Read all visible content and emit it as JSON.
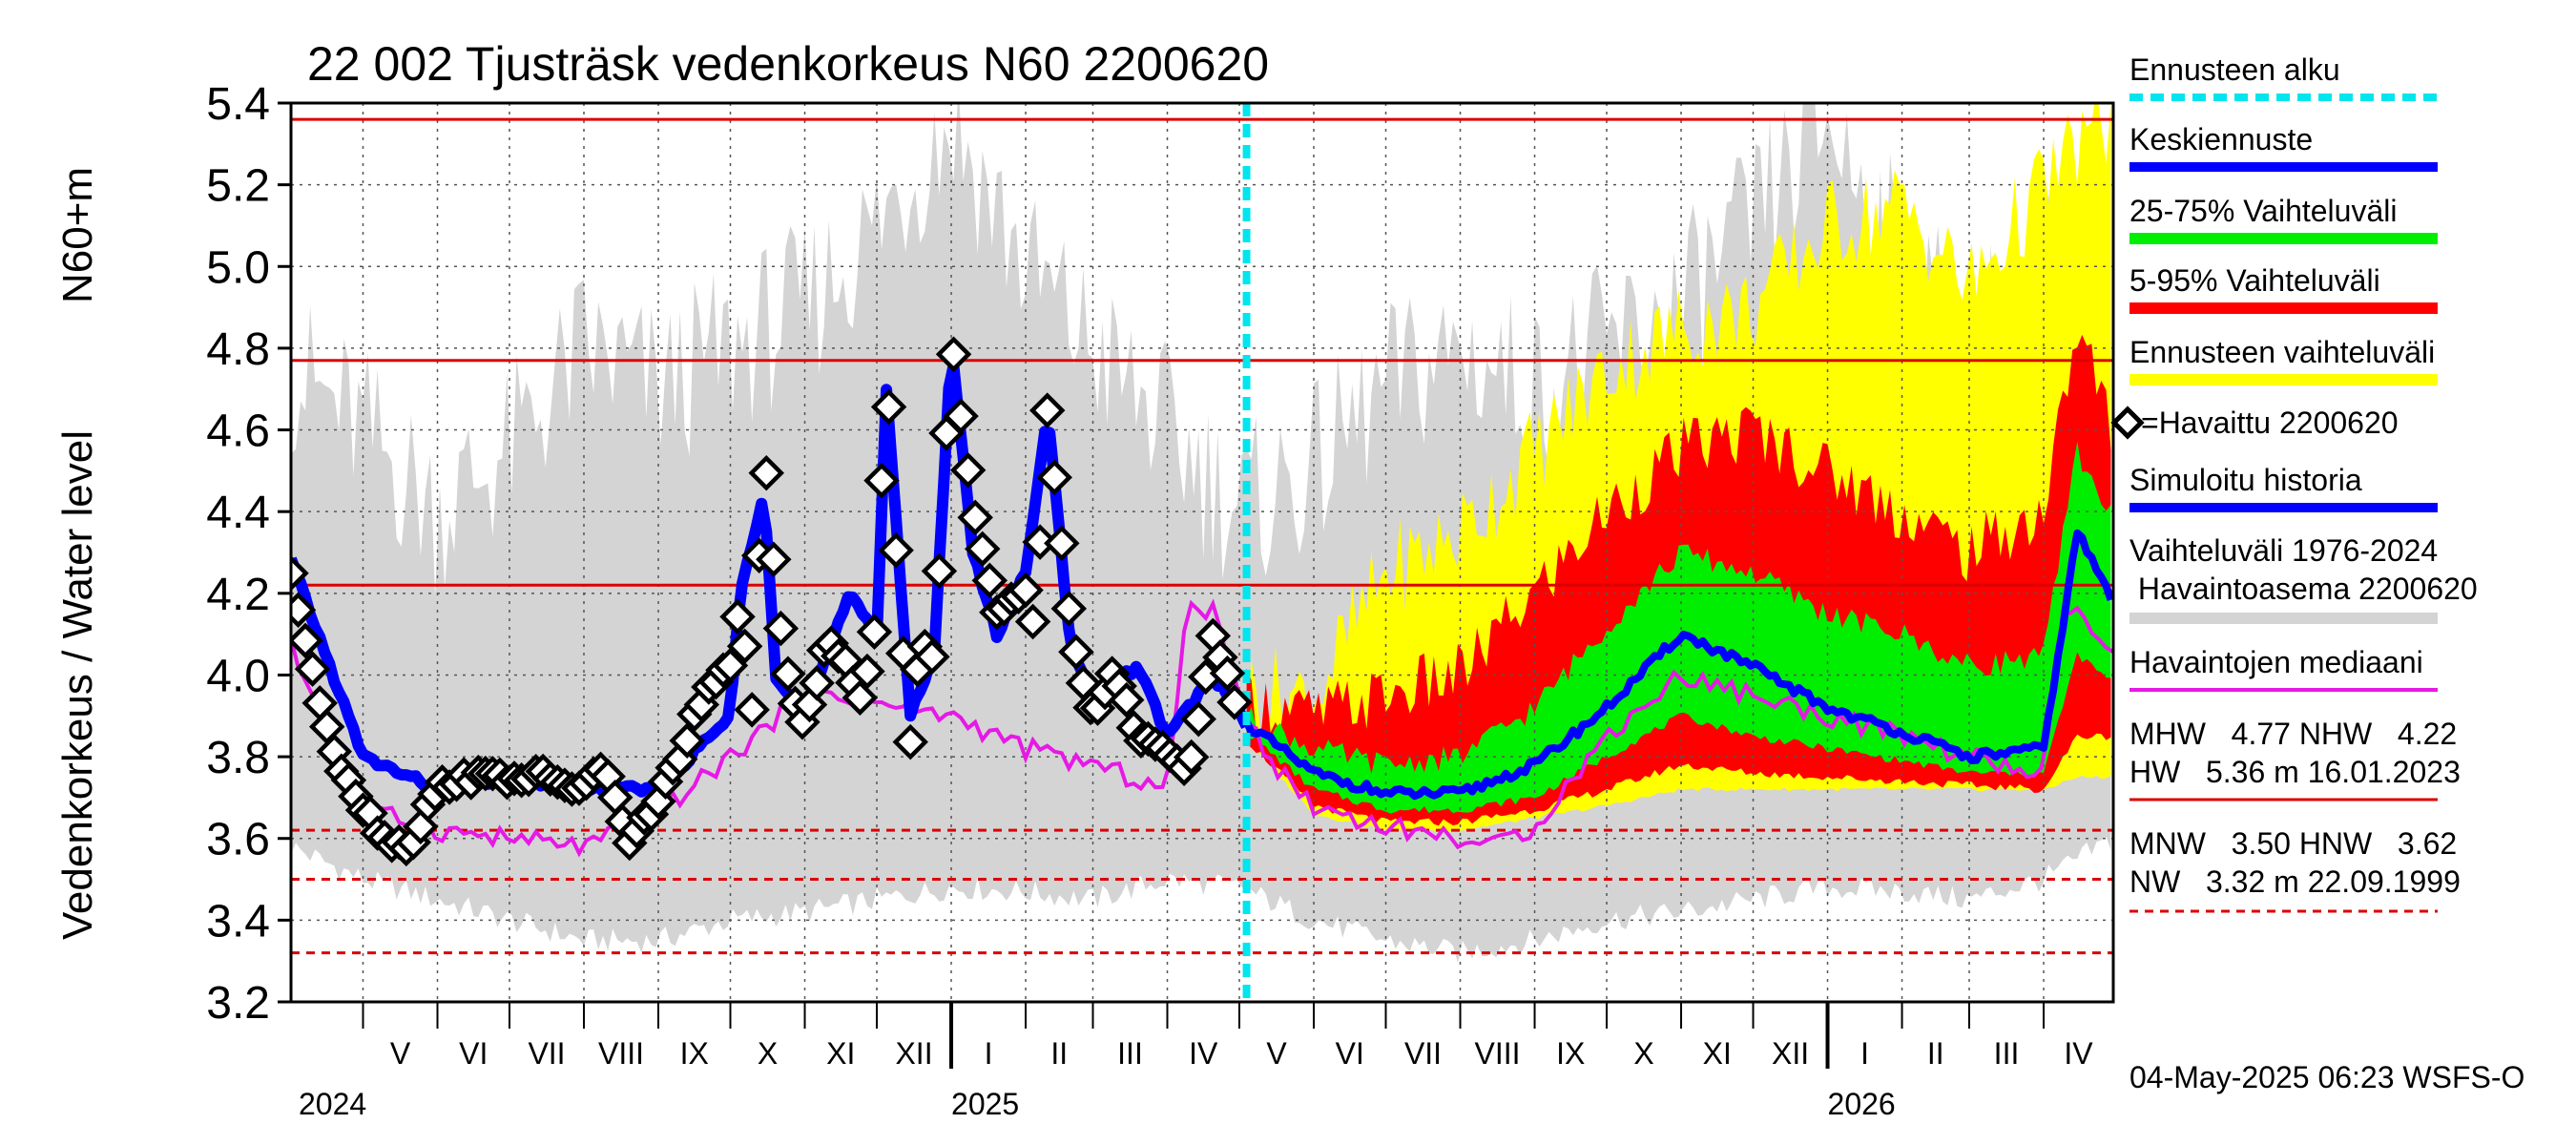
{
  "chart_data": {
    "type": "area",
    "title": "22 002 Tjusträsk vedenkorkeus N60 2200620",
    "ylabel_left": "Vedenkorkeus / Water level",
    "ylabel_right": "N60+m",
    "ylim": [
      3.2,
      5.4
    ],
    "yticks": [
      "3.2",
      "3.4",
      "3.6",
      "3.8",
      "4.0",
      "4.2",
      "4.4",
      "4.6",
      "4.8",
      "5.0",
      "5.2",
      "5.4"
    ],
    "x_start": "2024-04-01",
    "x_end": "2026-04-30",
    "forecast_start": "2025-05-04",
    "months": [
      {
        "label": "V",
        "start": "2024-05-01"
      },
      {
        "label": "VI",
        "start": "2024-06-01"
      },
      {
        "label": "VII",
        "start": "2024-07-01"
      },
      {
        "label": "VIII",
        "start": "2024-08-01"
      },
      {
        "label": "IX",
        "start": "2024-09-01"
      },
      {
        "label": "X",
        "start": "2024-10-01"
      },
      {
        "label": "XI",
        "start": "2024-11-01"
      },
      {
        "label": "XII",
        "start": "2024-12-01"
      },
      {
        "label": "I",
        "start": "2025-01-01"
      },
      {
        "label": "II",
        "start": "2025-02-01"
      },
      {
        "label": "III",
        "start": "2025-03-01"
      },
      {
        "label": "IV",
        "start": "2025-04-01"
      },
      {
        "label": "V",
        "start": "2025-05-01"
      },
      {
        "label": "VI",
        "start": "2025-06-01"
      },
      {
        "label": "VII",
        "start": "2025-07-01"
      },
      {
        "label": "VIII",
        "start": "2025-08-01"
      },
      {
        "label": "IX",
        "start": "2025-09-01"
      },
      {
        "label": "X",
        "start": "2025-10-01"
      },
      {
        "label": "XI",
        "start": "2025-11-01"
      },
      {
        "label": "XII",
        "start": "2025-12-01"
      },
      {
        "label": "I",
        "start": "2026-01-01"
      },
      {
        "label": "II",
        "start": "2026-02-01"
      },
      {
        "label": "III",
        "start": "2026-03-01"
      },
      {
        "label": "IV",
        "start": "2026-04-01"
      }
    ],
    "years": [
      {
        "label": "2024",
        "at": "2024-04-01"
      },
      {
        "label": "2025",
        "at": "2025-01-01"
      },
      {
        "label": "2026",
        "at": "2026-01-01"
      }
    ],
    "reference_lines": [
      {
        "name": "HW",
        "value": 5.36,
        "style": "solid"
      },
      {
        "name": "MHW",
        "value": 4.77,
        "style": "solid"
      },
      {
        "name": "NHW",
        "value": 4.22,
        "style": "solid"
      },
      {
        "name": "HNW",
        "value": 3.62,
        "style": "dashed"
      },
      {
        "name": "MNW",
        "value": 3.5,
        "style": "dashed"
      },
      {
        "name": "NW",
        "value": 3.32,
        "style": "dashed"
      }
    ],
    "colors": {
      "gray": "#d4d4d4",
      "yellow": "#ffff00",
      "red": "#ff0000",
      "green": "#00ee00",
      "blue": "#0000ff",
      "magenta": "#e619e6",
      "cyan": "#00e5ee",
      "refline": "#dd0000",
      "black": "#000000"
    },
    "historical_range": {
      "name": "Vaihteluväli 1976-2024 Havaintoasema 2200620",
      "dates": [
        "2024-04-01",
        "2024-05-01",
        "2024-06-01",
        "2024-07-01",
        "2024-08-01",
        "2024-09-01",
        "2024-10-01",
        "2024-11-01",
        "2024-12-01",
        "2025-01-01",
        "2025-02-01",
        "2025-03-01",
        "2025-04-01",
        "2025-05-01",
        "2025-06-01",
        "2025-07-01",
        "2025-08-01",
        "2025-09-01",
        "2025-10-01",
        "2025-11-01",
        "2025-12-01",
        "2026-01-01",
        "2026-02-01",
        "2026-03-01",
        "2026-04-01",
        "2026-04-30"
      ],
      "low": [
        3.58,
        3.5,
        3.45,
        3.4,
        3.35,
        3.35,
        3.4,
        3.42,
        3.45,
        3.48,
        3.47,
        3.45,
        3.5,
        3.48,
        3.4,
        3.35,
        3.32,
        3.35,
        3.4,
        3.42,
        3.45,
        3.48,
        3.47,
        3.45,
        3.5,
        3.6
      ],
      "high": [
        4.75,
        4.6,
        4.4,
        4.55,
        4.8,
        4.7,
        4.8,
        4.9,
        5.1,
        5.36,
        5.0,
        4.8,
        4.6,
        4.4,
        4.5,
        4.7,
        4.8,
        4.7,
        4.8,
        4.9,
        5.1,
        5.36,
        5.0,
        4.8,
        5.0,
        4.7
      ]
    },
    "observed": {
      "name": "Havaittu 2200620",
      "dates": [
        "2024-04-01",
        "2024-04-10",
        "2024-04-20",
        "2024-05-01",
        "2024-05-10",
        "2024-05-20",
        "2024-06-01",
        "2024-06-10",
        "2024-06-20",
        "2024-07-01",
        "2024-07-15",
        "2024-08-01",
        "2024-08-10",
        "2024-08-20",
        "2024-09-01",
        "2024-09-10",
        "2024-09-20",
        "2024-10-01",
        "2024-10-05",
        "2024-10-10",
        "2024-10-15",
        "2024-10-20",
        "2024-10-25",
        "2024-11-01",
        "2024-11-10",
        "2024-11-20",
        "2024-11-25",
        "2024-12-01",
        "2024-12-05",
        "2024-12-10",
        "2024-12-15",
        "2024-12-20",
        "2024-12-25",
        "2025-01-01",
        "2025-01-10",
        "2025-01-20",
        "2025-02-01",
        "2025-02-05",
        "2025-02-10",
        "2025-02-20",
        "2025-03-01",
        "2025-03-10",
        "2025-03-20",
        "2025-04-01",
        "2025-04-10",
        "2025-04-20",
        "2025-05-01"
      ],
      "values": [
        4.25,
        4.0,
        3.8,
        3.68,
        3.6,
        3.58,
        3.72,
        3.75,
        3.75,
        3.75,
        3.75,
        3.72,
        3.78,
        3.58,
        3.7,
        3.8,
        3.95,
        4.02,
        4.2,
        3.9,
        4.55,
        4.2,
        4.0,
        3.86,
        4.1,
        4.0,
        3.92,
        4.15,
        4.78,
        4.2,
        3.85,
        4.1,
        4.02,
        4.82,
        4.4,
        4.15,
        4.22,
        4.12,
        4.65,
        4.1,
        3.9,
        4.0,
        3.85,
        3.82,
        3.75,
        4.1,
        3.9
      ]
    },
    "simulated": {
      "name": "Simuloitu historia",
      "dates": [
        "2024-04-01",
        "2024-05-01",
        "2024-06-01",
        "2024-07-01",
        "2024-08-01",
        "2024-09-01",
        "2024-10-01",
        "2024-10-05",
        "2024-10-15",
        "2024-10-20",
        "2024-11-01",
        "2024-11-20",
        "2024-12-01",
        "2024-12-05",
        "2024-12-15",
        "2024-12-25",
        "2025-01-01",
        "2025-01-10",
        "2025-01-20",
        "2025-02-01",
        "2025-02-10",
        "2025-02-20",
        "2025-03-01",
        "2025-03-20",
        "2025-04-01",
        "2025-04-20",
        "2025-05-04"
      ],
      "values": [
        4.28,
        3.8,
        3.72,
        3.75,
        3.72,
        3.72,
        3.9,
        4.2,
        4.45,
        4.0,
        3.9,
        4.2,
        4.1,
        4.7,
        3.9,
        4.05,
        4.82,
        4.3,
        4.1,
        4.25,
        4.65,
        4.05,
        3.95,
        4.02,
        3.85,
        4.0,
        3.88
      ]
    },
    "median": {
      "name": "Havaintojen mediaani",
      "dates": [
        "2024-04-01",
        "2024-05-01",
        "2024-06-01",
        "2024-07-01",
        "2024-08-01",
        "2024-09-01",
        "2024-10-01",
        "2024-11-01",
        "2024-12-01",
        "2025-01-01",
        "2025-02-01",
        "2025-03-01",
        "2025-04-01",
        "2025-04-10",
        "2025-04-20",
        "2025-05-01",
        "2025-05-15",
        "2025-06-01",
        "2025-07-01",
        "2025-08-01",
        "2025-08-15",
        "2025-09-01",
        "2025-10-01",
        "2025-11-01",
        "2025-12-01",
        "2026-01-01",
        "2026-02-01",
        "2026-03-01",
        "2026-04-01",
        "2026-04-10",
        "2026-04-30"
      ],
      "values": [
        4.07,
        3.67,
        3.62,
        3.6,
        3.58,
        3.66,
        3.8,
        3.95,
        3.93,
        3.9,
        3.82,
        3.78,
        3.72,
        4.19,
        4.15,
        3.95,
        3.78,
        3.68,
        3.63,
        3.6,
        3.58,
        3.63,
        3.85,
        4.0,
        3.95,
        3.9,
        3.85,
        3.8,
        3.75,
        4.18,
        4.05
      ]
    },
    "forecast": {
      "dates": [
        "2025-05-04",
        "2025-06-01",
        "2025-07-01",
        "2025-08-01",
        "2025-09-01",
        "2025-10-01",
        "2025-11-01",
        "2025-12-01",
        "2026-01-01",
        "2026-02-01",
        "2026-03-01",
        "2026-04-01",
        "2026-04-15",
        "2026-04-30"
      ],
      "mean": [
        3.88,
        3.76,
        3.71,
        3.71,
        3.78,
        3.92,
        4.1,
        4.02,
        3.92,
        3.86,
        3.8,
        3.82,
        4.35,
        4.18
      ],
      "p25": [
        3.86,
        3.72,
        3.67,
        3.67,
        3.7,
        3.8,
        3.9,
        3.85,
        3.82,
        3.79,
        3.76,
        3.76,
        4.05,
        3.98
      ],
      "p75": [
        3.9,
        3.82,
        3.78,
        3.8,
        3.92,
        4.12,
        4.3,
        4.25,
        4.15,
        4.1,
        4.02,
        4.05,
        4.55,
        4.38
      ],
      "p05": [
        3.84,
        3.68,
        3.64,
        3.64,
        3.67,
        3.72,
        3.78,
        3.76,
        3.75,
        3.74,
        3.73,
        3.72,
        3.85,
        3.85
      ],
      "p95": [
        3.94,
        3.9,
        3.95,
        4.0,
        4.2,
        4.4,
        4.55,
        4.6,
        4.5,
        4.4,
        4.3,
        4.4,
        4.85,
        4.6
      ],
      "min": [
        3.84,
        3.66,
        3.62,
        3.62,
        3.65,
        3.68,
        3.72,
        3.72,
        3.72,
        3.72,
        3.72,
        3.72,
        3.75,
        3.75
      ],
      "max": [
        3.96,
        3.95,
        4.25,
        4.35,
        4.55,
        4.75,
        4.85,
        4.9,
        5.1,
        5.15,
        4.95,
        5.2,
        5.3,
        5.35
      ]
    },
    "legend": {
      "forecast_start": "Ennusteen alku",
      "mean": "Keskiennuste",
      "p25_75": "25-75% Vaihteluväli",
      "p05_95": "5-95% Vaihteluväli",
      "range": "Ennusteen vaihteluväli",
      "observed": "=Havaittu 2200620",
      "simulated": "Simuloitu historia",
      "hist_line1": "Vaihteluväli 1976-2024",
      "hist_line2": " Havaintoasema 2200620",
      "median": "Havaintojen mediaani",
      "stats_hi_1": "MHW   4.77 NHW   4.22",
      "stats_hi_2": "HW   5.36 m 16.01.2023",
      "stats_lo_1": "MNW   3.50 HNW   3.62",
      "stats_lo_2": "NW   3.32 m 22.09.1999"
    },
    "footer": "04-May-2025 06:23 WSFS-O"
  }
}
